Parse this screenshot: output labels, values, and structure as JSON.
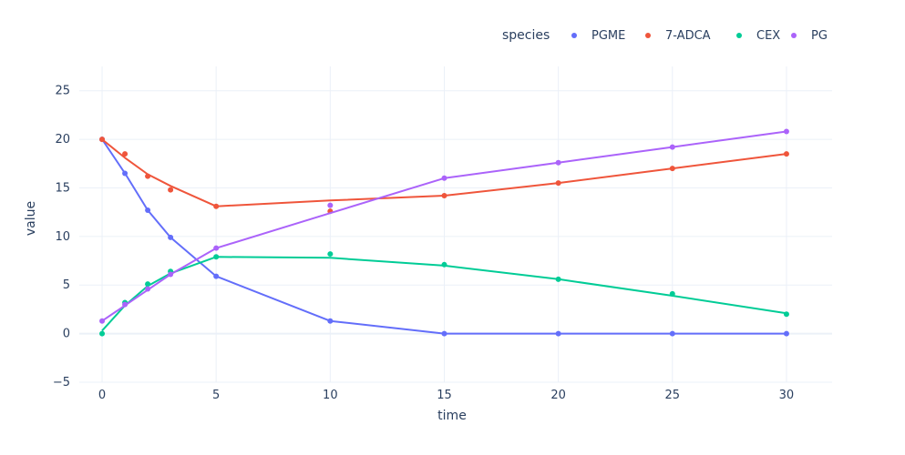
{
  "chart_data": {
    "type": "line",
    "xlabel": "time",
    "ylabel": "value",
    "xlim": [
      -1,
      32
    ],
    "ylim": [
      -5,
      27.5
    ],
    "xticks": [
      0,
      5,
      10,
      15,
      20,
      25,
      30
    ],
    "yticks": [
      -5,
      0,
      5,
      10,
      15,
      20,
      25
    ],
    "grid": true,
    "legend": {
      "title": "species",
      "placement": "top-right",
      "orientation": "horizontal"
    },
    "series": [
      {
        "name": "PGME",
        "color": "#636efa",
        "points_x": [
          0,
          1,
          2,
          3,
          5,
          10,
          15,
          20,
          25,
          30
        ],
        "points_y": [
          20.0,
          16.5,
          12.7,
          9.9,
          5.9,
          1.3,
          0.0,
          0.0,
          0.0,
          0.0
        ],
        "line_x": [
          0,
          1,
          2,
          3,
          5,
          10,
          15,
          20,
          25,
          30
        ],
        "line_y": [
          20.0,
          16.5,
          12.7,
          9.9,
          5.9,
          1.3,
          0.0,
          0.0,
          0.0,
          0.0
        ]
      },
      {
        "name": "7-ADCA",
        "color": "#EF553B",
        "points_x": [
          0,
          1,
          2,
          3,
          5,
          10,
          15,
          20,
          25,
          30
        ],
        "points_y": [
          20.0,
          18.5,
          16.2,
          14.8,
          13.1,
          12.6,
          14.2,
          15.5,
          17.0,
          18.5
        ],
        "line_x": [
          0,
          1,
          2,
          3,
          5,
          10,
          15,
          20,
          25,
          30
        ],
        "line_y": [
          20.0,
          18.1,
          16.4,
          15.2,
          13.1,
          13.7,
          14.2,
          15.5,
          17.0,
          18.5
        ]
      },
      {
        "name": "CEX",
        "color": "#00cc96",
        "points_x": [
          0,
          1,
          2,
          3,
          5,
          10,
          15,
          20,
          25,
          30
        ],
        "points_y": [
          0.0,
          3.2,
          5.1,
          6.4,
          7.9,
          8.2,
          7.1,
          5.6,
          4.1,
          2.0
        ],
        "line_x": [
          0,
          1,
          2,
          3,
          5,
          10,
          15,
          20,
          25,
          30
        ],
        "line_y": [
          0.3,
          2.9,
          4.9,
          6.2,
          7.9,
          7.8,
          7.0,
          5.6,
          3.9,
          2.1
        ]
      },
      {
        "name": "PG",
        "color": "#ab63fa",
        "points_x": [
          0,
          1,
          2,
          3,
          5,
          10,
          15,
          20,
          25,
          30
        ],
        "points_y": [
          1.3,
          3.0,
          4.6,
          6.1,
          8.8,
          13.2,
          16.0,
          17.6,
          19.2,
          20.8
        ],
        "line_x": [
          0,
          1,
          2,
          3,
          5,
          10,
          15,
          20,
          25,
          30
        ],
        "line_y": [
          1.3,
          2.9,
          4.5,
          6.1,
          8.8,
          12.4,
          16.0,
          17.6,
          19.2,
          20.8
        ]
      }
    ]
  }
}
